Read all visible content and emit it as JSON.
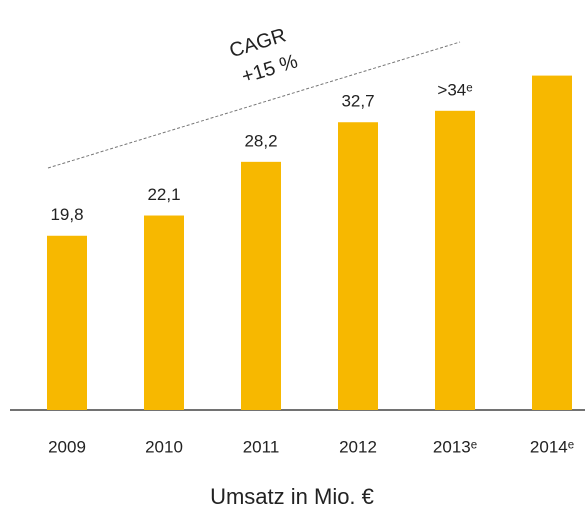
{
  "chart_data": {
    "type": "bar",
    "x_label": "Umsatz in Mio. €",
    "annotations": [
      "CAGR",
      "+15 %"
    ],
    "categories": [
      "2009",
      "2010",
      "2011",
      "2012",
      "2013ᵉ",
      "2014ᵉ"
    ],
    "values": [
      19.8,
      22.1,
      28.2,
      32.7,
      34,
      38
    ],
    "value_labels": [
      "19,8",
      "22,1",
      "28,2",
      "32,7",
      ">34ᵉ",
      null
    ],
    "color": "#f7b800",
    "ylim": [
      0,
      40
    ]
  }
}
